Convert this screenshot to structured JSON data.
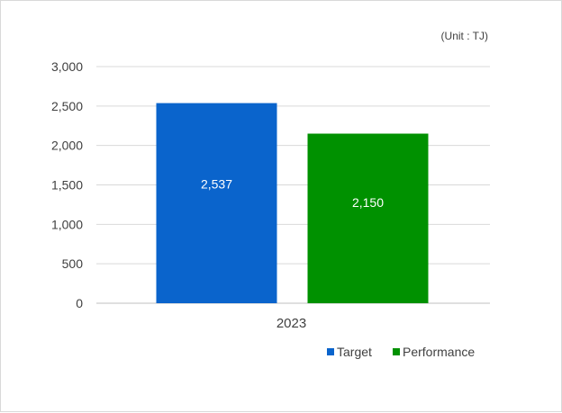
{
  "chart_data": {
    "type": "bar",
    "unit_label": "(Unit : TJ)",
    "categories": [
      "2023"
    ],
    "series": [
      {
        "name": "Target",
        "values": [
          2537
        ],
        "labels": [
          "2,537"
        ],
        "color": "#0a64cc"
      },
      {
        "name": "Performance",
        "values": [
          2150
        ],
        "labels": [
          "2,150"
        ],
        "color": "#009100"
      }
    ],
    "ylim": [
      0,
      3000
    ],
    "yticks": [
      0,
      500,
      1000,
      1500,
      2000,
      2500,
      3000
    ],
    "ytick_labels": [
      "0",
      "500",
      "1,000",
      "1,500",
      "2,000",
      "2,500",
      "3,000"
    ],
    "grid": true,
    "legend_position": "bottom-right"
  }
}
